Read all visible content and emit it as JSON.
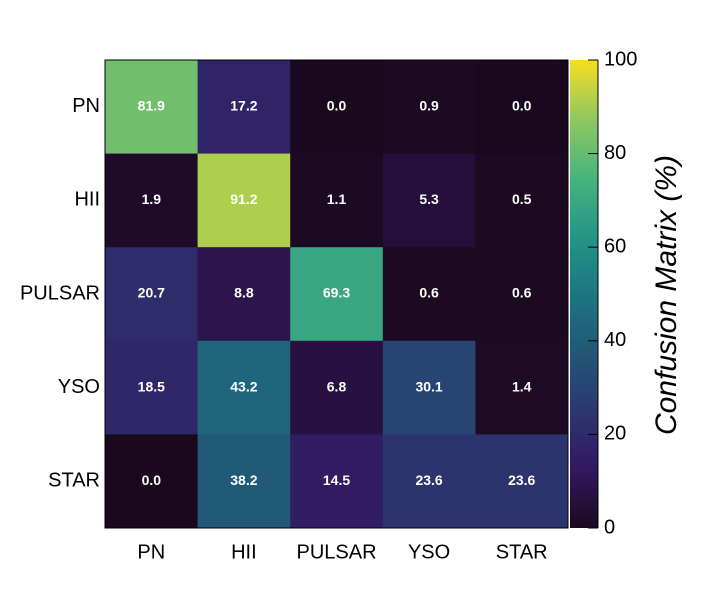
{
  "chart_data": {
    "type": "heatmap",
    "x_categories": [
      "PN",
      "HII",
      "PULSAR",
      "YSO",
      "STAR"
    ],
    "y_categories": [
      "PN",
      "HII",
      "PULSAR",
      "YSO",
      "STAR"
    ],
    "values": [
      [
        81.9,
        17.2,
        0,
        0.9,
        0
      ],
      [
        1.9,
        91.2,
        1.1,
        5.3,
        0.5
      ],
      [
        20.7,
        8.8,
        69.3,
        0.6,
        0.6
      ],
      [
        18.5,
        43.2,
        6.8,
        30.1,
        1.4
      ],
      [
        0,
        38.2,
        14.5,
        23.6,
        23.6
      ]
    ],
    "value_labels": [
      [
        "81.9",
        "17.2",
        "0.0",
        "0.9",
        "0.0"
      ],
      [
        "1.9",
        "91.2",
        "1.1",
        "5.3",
        "0.5"
      ],
      [
        "20.7",
        "8.8",
        "69.3",
        "0.6",
        "0.6"
      ],
      [
        "18.5",
        "43.2",
        "6.8",
        "30.1",
        "1.4"
      ],
      [
        "0.0",
        "38.2",
        "14.5",
        "23.6",
        "23.6"
      ]
    ],
    "colormap": "viridis",
    "zlim": [
      0,
      100
    ],
    "zticks": [
      0,
      20,
      40,
      60,
      80,
      100
    ],
    "colorbar_label": "Confusion Matrix (%)"
  }
}
